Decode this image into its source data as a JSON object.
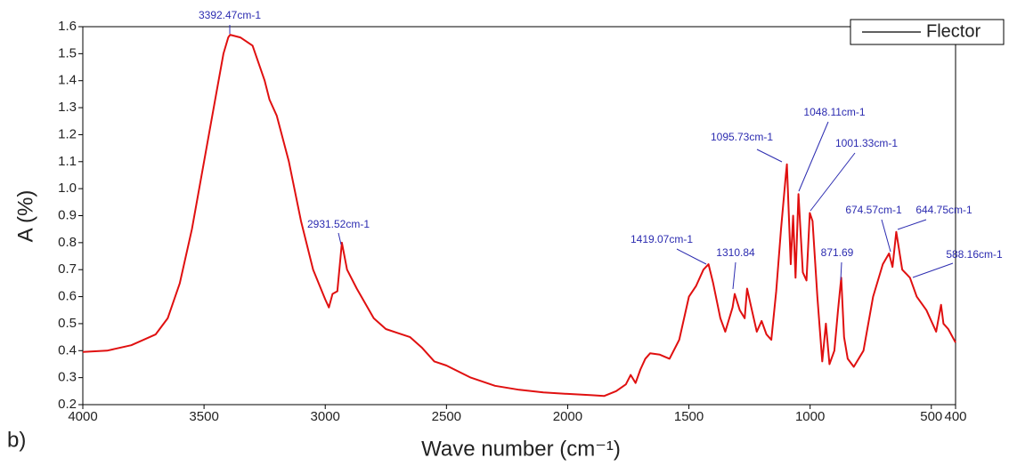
{
  "chart_data": {
    "type": "line",
    "xlabel": "Wave number (cm⁻¹)",
    "ylabel": "A (%)",
    "panel_label": "b)",
    "x": [
      4000,
      3900,
      3800,
      3700,
      3650,
      3600,
      3550,
      3500,
      3450,
      3420,
      3400,
      3392.47,
      3350,
      3300,
      3250,
      3230,
      3200,
      3150,
      3100,
      3050,
      3000,
      2985,
      2970,
      2950,
      2931.52,
      2910,
      2870,
      2800,
      2750,
      2700,
      2650,
      2600,
      2550,
      2500,
      2400,
      2300,
      2200,
      2100,
      2000,
      1900,
      1850,
      1800,
      1760,
      1740,
      1720,
      1700,
      1680,
      1660,
      1620,
      1580,
      1540,
      1500,
      1470,
      1440,
      1419.07,
      1400,
      1370,
      1350,
      1320,
      1310.84,
      1290,
      1270,
      1260,
      1240,
      1220,
      1200,
      1180,
      1160,
      1140,
      1120,
      1100,
      1095.73,
      1080,
      1070,
      1060,
      1048.11,
      1030,
      1015,
      1001.33,
      990,
      970,
      950,
      935,
      920,
      900,
      885,
      871.69,
      860,
      845,
      820,
      780,
      740,
      700,
      674.57,
      660,
      644.75,
      620,
      588.16,
      560,
      520,
      480,
      460,
      450,
      430,
      400
    ],
    "series": [
      {
        "name": "Flector",
        "color": "#e01010",
        "values": [
          0.395,
          0.4,
          0.42,
          0.46,
          0.52,
          0.65,
          0.85,
          1.1,
          1.35,
          1.5,
          1.56,
          1.57,
          1.56,
          1.53,
          1.4,
          1.33,
          1.27,
          1.1,
          0.88,
          0.7,
          0.59,
          0.56,
          0.61,
          0.62,
          0.8,
          0.7,
          0.63,
          0.52,
          0.48,
          0.465,
          0.45,
          0.41,
          0.36,
          0.345,
          0.3,
          0.27,
          0.255,
          0.245,
          0.24,
          0.235,
          0.232,
          0.25,
          0.275,
          0.31,
          0.28,
          0.33,
          0.37,
          0.39,
          0.385,
          0.37,
          0.44,
          0.6,
          0.64,
          0.7,
          0.72,
          0.65,
          0.52,
          0.47,
          0.56,
          0.61,
          0.55,
          0.52,
          0.63,
          0.55,
          0.47,
          0.51,
          0.46,
          0.44,
          0.62,
          0.85,
          1.05,
          1.09,
          0.72,
          0.9,
          0.67,
          0.98,
          0.69,
          0.66,
          0.91,
          0.88,
          0.6,
          0.36,
          0.5,
          0.35,
          0.4,
          0.55,
          0.67,
          0.45,
          0.37,
          0.34,
          0.4,
          0.6,
          0.72,
          0.76,
          0.71,
          0.84,
          0.7,
          0.67,
          0.6,
          0.55,
          0.47,
          0.57,
          0.5,
          0.48,
          0.43
        ]
      }
    ],
    "xlim": [
      4000,
      400
    ],
    "xticks": [
      4000,
      3500,
      3000,
      2500,
      2000,
      1500,
      1000,
      500,
      400
    ],
    "ylim": [
      0.2,
      1.6
    ],
    "yticks": [
      0.2,
      0.3,
      0.4,
      0.5,
      0.6,
      0.7,
      0.8,
      0.9,
      {
        "value": 1,
        "label": "1.0"
      },
      1.1,
      1.2,
      1.3,
      1.4,
      1.5,
      1.6
    ],
    "annotations": [
      "3392.47cm-1",
      "2931.52cm-1",
      "1419.07cm-1",
      "1310.84",
      "1095.73cm-1",
      "1048.11cm-1",
      "1001.33cm-1",
      "871.69",
      "674.57cm-1",
      "644.75cm-1",
      "588.16cm-1"
    ],
    "legend": "upper right"
  }
}
